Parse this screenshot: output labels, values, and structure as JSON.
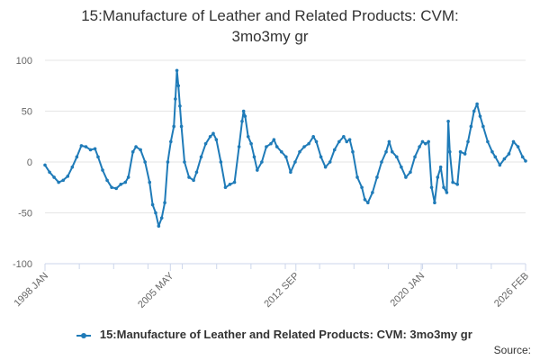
{
  "title": {
    "line1": "15:Manufacture of Leather and Related Products: CVM:",
    "line2": "3mo3my gr"
  },
  "source_label": "Source:",
  "colors": {
    "series": "#1f7bb8",
    "grid": "#e6e6e6",
    "axis": "#ccd6eb",
    "text": "#333333",
    "tick": "#666666"
  },
  "chart_data": {
    "type": "line",
    "ylim": [
      -100,
      100
    ],
    "yticks": [
      100,
      50,
      0,
      -50,
      -100
    ],
    "xlim": [
      1998.0,
      2026.1
    ],
    "xticks": [
      {
        "label": "1998 JAN",
        "x": 1998.0
      },
      {
        "label": "2005 MAY",
        "x": 2005.33
      },
      {
        "label": "2012 SEP",
        "x": 2012.67
      },
      {
        "label": "2020 JAN",
        "x": 2020.0
      },
      {
        "label": "2026 FEB",
        "x": 2026.1
      }
    ],
    "grid": true,
    "legend": "bottom-center",
    "series": [
      {
        "name": "15:Manufacture of Leather and Related Products: CVM: 3mo3my gr",
        "points": [
          [
            1998.0,
            -3
          ],
          [
            1998.3,
            -10
          ],
          [
            1998.6,
            -15
          ],
          [
            1998.9,
            -20
          ],
          [
            1999.2,
            -18
          ],
          [
            1999.5,
            -14
          ],
          [
            1999.8,
            -5
          ],
          [
            2000.1,
            5
          ],
          [
            2000.4,
            16
          ],
          [
            2000.7,
            15
          ],
          [
            2001.0,
            12
          ],
          [
            2001.3,
            13
          ],
          [
            2001.5,
            5
          ],
          [
            2001.8,
            -8
          ],
          [
            2002.1,
            -18
          ],
          [
            2002.4,
            -25
          ],
          [
            2002.7,
            -26
          ],
          [
            2003.0,
            -22
          ],
          [
            2003.3,
            -20
          ],
          [
            2003.5,
            -15
          ],
          [
            2003.8,
            10
          ],
          [
            2004.0,
            15
          ],
          [
            2004.3,
            12
          ],
          [
            2004.6,
            0
          ],
          [
            2004.9,
            -20
          ],
          [
            2005.1,
            -42
          ],
          [
            2005.3,
            -50
          ],
          [
            2005.5,
            -63
          ],
          [
            2005.7,
            -55
          ],
          [
            2005.9,
            -40
          ],
          [
            2006.1,
            0
          ],
          [
            2006.3,
            20
          ],
          [
            2006.5,
            35
          ],
          [
            2006.6,
            62
          ],
          [
            2006.7,
            90
          ],
          [
            2006.8,
            75
          ],
          [
            2006.9,
            55
          ],
          [
            2007.0,
            35
          ],
          [
            2007.2,
            0
          ],
          [
            2007.5,
            -15
          ],
          [
            2007.8,
            -18
          ],
          [
            2008.0,
            -10
          ],
          [
            2008.3,
            5
          ],
          [
            2008.6,
            18
          ],
          [
            2008.9,
            25
          ],
          [
            2009.1,
            28
          ],
          [
            2009.3,
            22
          ],
          [
            2009.6,
            0
          ],
          [
            2009.9,
            -25
          ],
          [
            2010.2,
            -22
          ],
          [
            2010.5,
            -20
          ],
          [
            2010.8,
            15
          ],
          [
            2011.0,
            40
          ],
          [
            2011.1,
            50
          ],
          [
            2011.2,
            45
          ],
          [
            2011.4,
            25
          ],
          [
            2011.6,
            18
          ],
          [
            2011.8,
            5
          ],
          [
            2012.0,
            -8
          ],
          [
            2012.3,
            0
          ],
          [
            2012.6,
            15
          ],
          [
            2012.9,
            18
          ],
          [
            2013.1,
            22
          ],
          [
            2013.3,
            15
          ],
          [
            2013.6,
            10
          ],
          [
            2013.9,
            5
          ],
          [
            2014.2,
            -10
          ],
          [
            2014.5,
            0
          ],
          [
            2014.8,
            10
          ],
          [
            2015.1,
            15
          ],
          [
            2015.4,
            18
          ],
          [
            2015.7,
            25
          ],
          [
            2015.9,
            20
          ],
          [
            2016.2,
            5
          ],
          [
            2016.5,
            -5
          ],
          [
            2016.8,
            0
          ],
          [
            2017.1,
            12
          ],
          [
            2017.4,
            20
          ],
          [
            2017.7,
            25
          ],
          [
            2017.9,
            20
          ],
          [
            2018.1,
            22
          ],
          [
            2018.3,
            10
          ],
          [
            2018.6,
            -15
          ],
          [
            2018.9,
            -25
          ],
          [
            2019.1,
            -37
          ],
          [
            2019.3,
            -40
          ],
          [
            2019.6,
            -30
          ],
          [
            2019.9,
            -15
          ],
          [
            2020.2,
            0
          ],
          [
            2020.5,
            10
          ],
          [
            2020.7,
            20
          ],
          [
            2020.9,
            10
          ],
          [
            2021.2,
            5
          ],
          [
            2021.5,
            -5
          ],
          [
            2021.8,
            -15
          ],
          [
            2022.1,
            -10
          ],
          [
            2022.4,
            5
          ],
          [
            2022.7,
            15
          ],
          [
            2022.9,
            20
          ],
          [
            2023.1,
            18
          ],
          [
            2023.3,
            20
          ],
          [
            2023.5,
            -25
          ],
          [
            2023.7,
            -40
          ],
          [
            2023.9,
            -15
          ],
          [
            2024.1,
            -5
          ],
          [
            2024.3,
            -25
          ],
          [
            2024.5,
            -30
          ],
          [
            2024.6,
            40
          ],
          [
            2024.7,
            10
          ],
          [
            2024.9,
            -20
          ],
          [
            2025.2,
            -22
          ],
          [
            2025.4,
            10
          ],
          [
            2025.7,
            8
          ],
          [
            2025.9,
            20
          ],
          [
            2026.1,
            35
          ],
          [
            2026.3,
            50
          ],
          [
            2026.5,
            57
          ],
          [
            2026.7,
            45
          ],
          [
            2026.9,
            35
          ],
          [
            2027.2,
            20
          ],
          [
            2027.5,
            10
          ],
          [
            2027.7,
            5
          ],
          [
            2028.0,
            -3
          ],
          [
            2028.3,
            3
          ],
          [
            2028.6,
            8
          ],
          [
            2028.9,
            20
          ],
          [
            2029.2,
            15
          ],
          [
            2029.5,
            5
          ],
          [
            2029.7,
            1
          ]
        ]
      }
    ]
  }
}
